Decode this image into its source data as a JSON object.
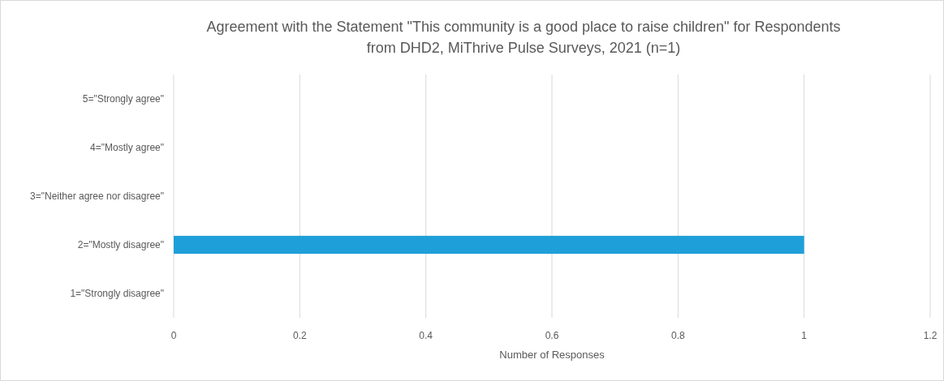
{
  "chart_data": {
    "type": "bar",
    "orientation": "horizontal",
    "title": "Agreement with the Statement \"This community is a good place to raise children\" for Respondents from DHD2, MiThrive Pulse Surveys, 2021 (n=1)",
    "xlabel": "Number of Responses",
    "categories": [
      "5=\"Strongly agree\"",
      "4=\"Mostly agree\"",
      "3=\"Neither agree nor disagree\"",
      "2=\"Mostly disagree\"",
      "1=\"Strongly disagree\""
    ],
    "values": [
      0,
      0,
      0,
      1,
      0
    ],
    "color": "#1f9fd9",
    "xlim": [
      0,
      1.2
    ],
    "xticks": [
      0,
      0.2,
      0.4,
      0.6,
      0.8,
      1,
      1.2
    ],
    "grid": "x"
  }
}
